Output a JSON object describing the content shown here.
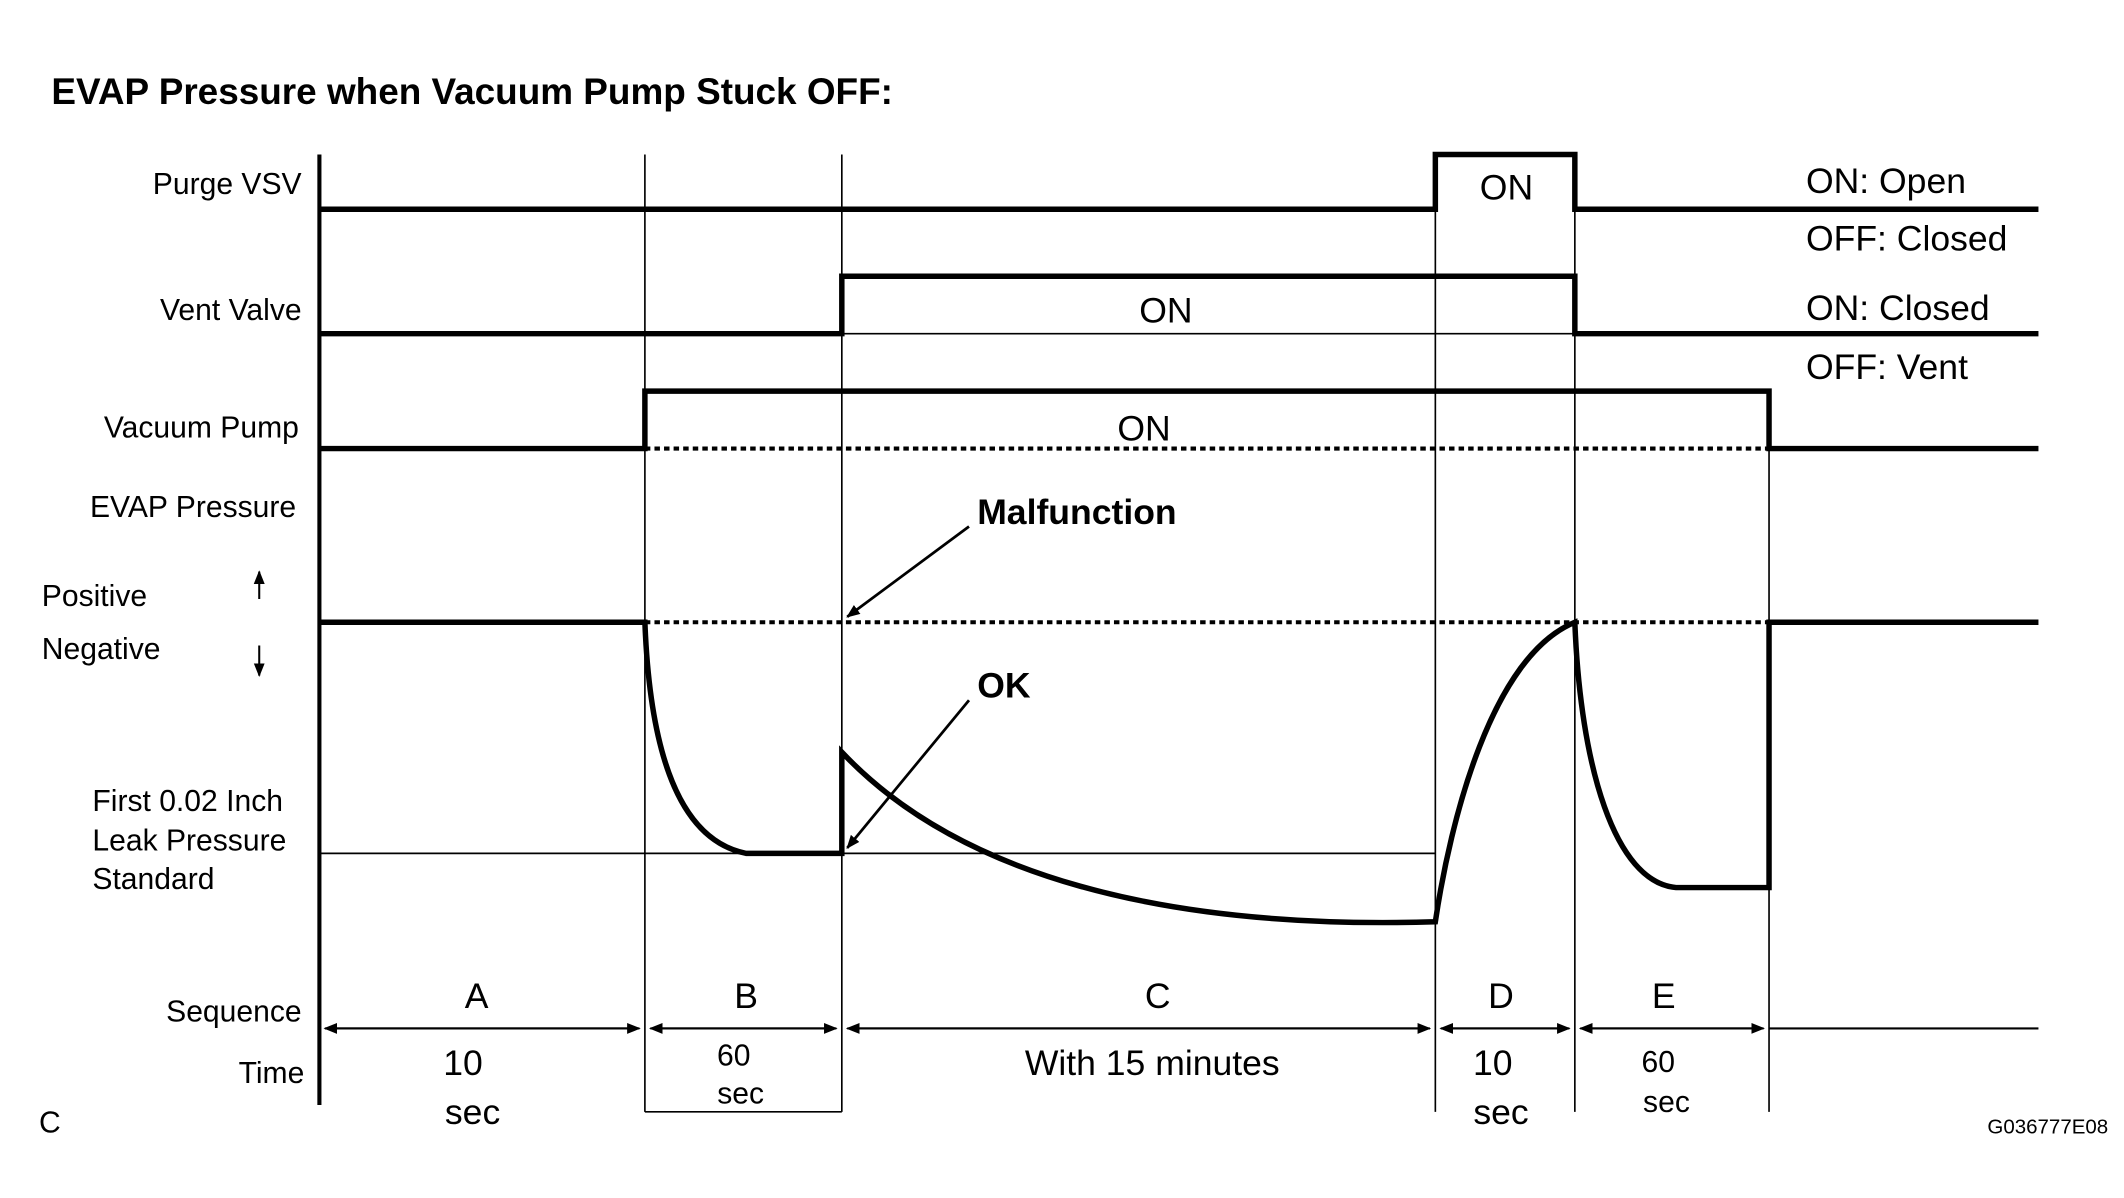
{
  "title": "EVAP Pressure when Vacuum Pump Stuck OFF:",
  "rows": {
    "purge_vsv": "Purge VSV",
    "vent_valve": "Vent Valve",
    "vacuum_pump": "Vacuum Pump",
    "evap_pressure": "EVAP Pressure",
    "positive": "Positive",
    "negative": "Negative",
    "leak_standard_1": "First 0.02 Inch",
    "leak_standard_2": "Leak Pressure",
    "leak_standard_3": "Standard",
    "sequence": "Sequence",
    "time": "Time"
  },
  "states": {
    "purge_on": "ON",
    "vent_on": "ON",
    "pump_on": "ON"
  },
  "legend": {
    "purge_on": "ON: Open",
    "purge_off": "OFF: Closed",
    "vent_on": "ON: Closed",
    "vent_off": "OFF: Vent"
  },
  "annotations": {
    "malfunction": "Malfunction",
    "ok": "OK"
  },
  "sequences": [
    {
      "label": "A",
      "time_1": "10",
      "time_2": "sec"
    },
    {
      "label": "B",
      "time_1": "60",
      "time_2": "sec"
    },
    {
      "label": "C",
      "time_1": "With 15 minutes",
      "time_2": ""
    },
    {
      "label": "D",
      "time_1": "10",
      "time_2": "sec"
    },
    {
      "label": "E",
      "time_1": "60",
      "time_2": "sec"
    }
  ],
  "corner_label": "C",
  "figure_id": "G036777E08"
}
